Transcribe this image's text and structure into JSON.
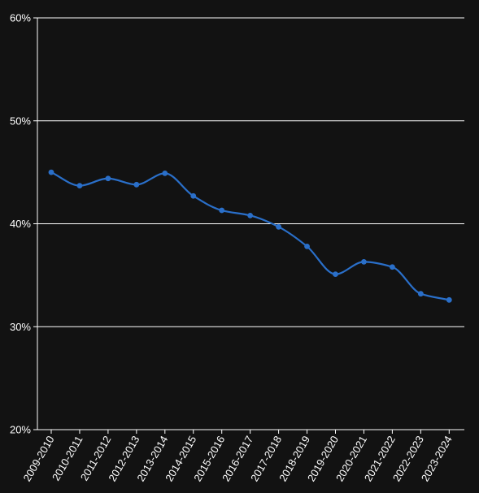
{
  "chart_data": {
    "type": "line",
    "title": "",
    "xlabel": "",
    "ylabel": "",
    "categories": [
      "2009-2010",
      "2010-2011",
      "2011-2012",
      "2012-2013",
      "2013-2014",
      "2014-2015",
      "2015-2016",
      "2016-2017",
      "2017-2018",
      "2018-2019",
      "2019-2020",
      "2020-2021",
      "2021-2022",
      "2022-2023",
      "2023-2024"
    ],
    "series": [
      {
        "values": [
          45.0,
          43.7,
          44.4,
          43.8,
          44.9,
          42.7,
          41.3,
          40.8,
          39.7,
          37.8,
          35.1,
          36.3,
          35.8,
          33.2,
          32.6
        ]
      }
    ],
    "ylim": [
      20,
      60
    ],
    "yticks": [
      20,
      30,
      40,
      50,
      60
    ],
    "ytick_labels": [
      "20%",
      "30%",
      "40%",
      "50%",
      "60%"
    ],
    "grid": true,
    "line_color": "#2a6fc9",
    "background_color": "#121212",
    "grid_color": "#ffffff"
  }
}
